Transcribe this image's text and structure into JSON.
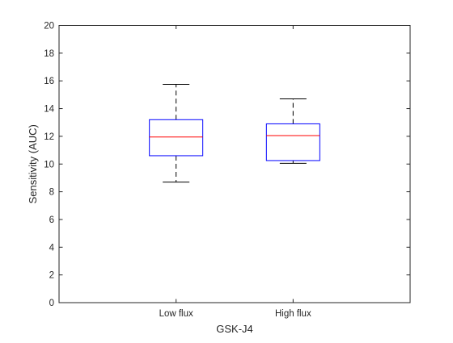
{
  "chart_data": {
    "type": "boxplot",
    "title": "",
    "xlabel": "GSK-J4",
    "ylabel": "Sensitivity (AUC)",
    "ylim": [
      0,
      20
    ],
    "yticks": [
      0,
      2,
      4,
      6,
      8,
      10,
      12,
      14,
      16,
      18,
      20
    ],
    "grid": false,
    "categories": [
      "Low flux",
      "High flux"
    ],
    "boxes": [
      {
        "category": "Low flux",
        "min": 8.7,
        "q1": 10.6,
        "median": 11.95,
        "q3": 13.2,
        "max": 15.75
      },
      {
        "category": "High flux",
        "min": 10.05,
        "q1": 10.25,
        "median": 12.05,
        "q3": 12.9,
        "max": 14.7
      }
    ],
    "colors": {
      "box": "#0000ff",
      "median": "#ff0000",
      "whisker": "#000000",
      "axis": "#262626"
    }
  }
}
